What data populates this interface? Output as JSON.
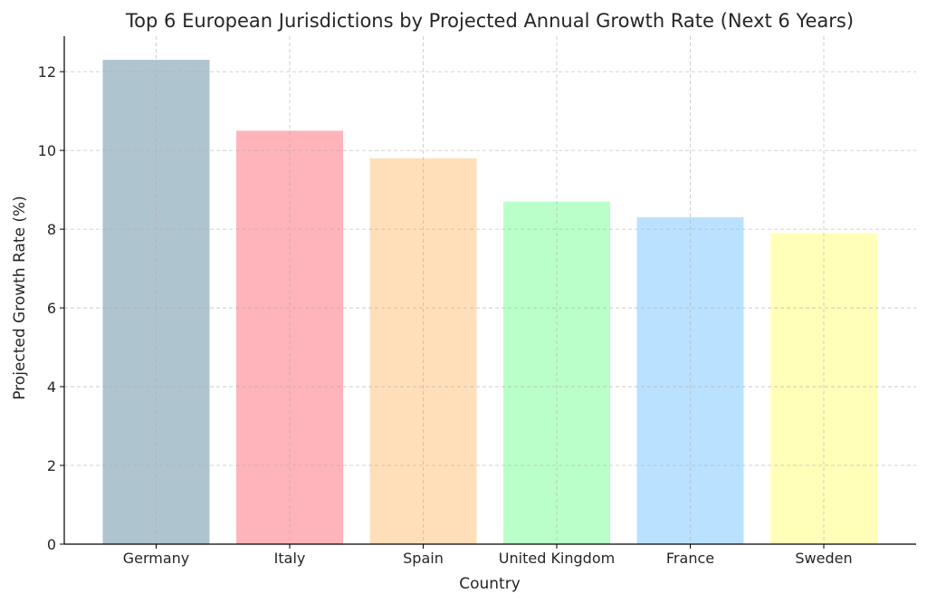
{
  "chart_data": {
    "type": "bar",
    "title": "Top 6 European Jurisdictions by Projected Annual Growth Rate (Next 6 Years)",
    "xlabel": "Country",
    "ylabel": "Projected Growth Rate (%)",
    "categories": [
      "Germany",
      "Italy",
      "Spain",
      "United Kingdom",
      "France",
      "Sweden"
    ],
    "values": [
      12.3,
      10.5,
      9.8,
      8.7,
      8.3,
      7.9
    ],
    "colors": [
      "#aec4cf",
      "#ffb3ba",
      "#ffdfba",
      "#baffc9",
      "#bae1ff",
      "#ffffba"
    ],
    "ylim": [
      0,
      12.9
    ],
    "yticks": [
      0,
      2,
      4,
      6,
      8,
      10,
      12
    ],
    "grid": true,
    "legend": "none"
  }
}
